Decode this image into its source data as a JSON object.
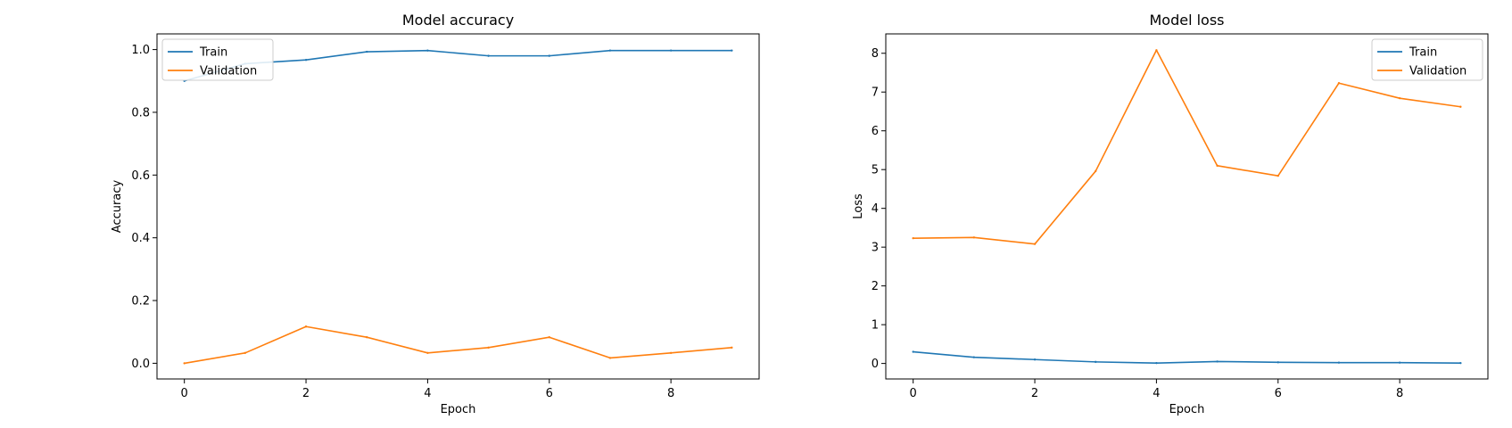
{
  "colors": {
    "train": "#1f77b4",
    "validation": "#ff7f0e",
    "axis": "#000000",
    "background": "#ffffff"
  },
  "chart_data": [
    {
      "type": "line",
      "title": "Model accuracy",
      "xlabel": "Epoch",
      "ylabel": "Accuracy",
      "xlim": [
        -0.45,
        9.45
      ],
      "ylim": [
        -0.05,
        1.05
      ],
      "xticks": [
        0,
        2,
        4,
        6,
        8
      ],
      "xtick_labels": [
        "0",
        "2",
        "4",
        "6",
        "8"
      ],
      "yticks": [
        0.0,
        0.2,
        0.4,
        0.6,
        0.8,
        1.0
      ],
      "ytick_labels": [
        "0.0",
        "0.2",
        "0.4",
        "0.6",
        "0.8",
        "1.0"
      ],
      "legend": "upper left",
      "x": [
        0,
        1,
        2,
        3,
        4,
        5,
        6,
        7,
        8,
        9
      ],
      "series": [
        {
          "name": "Train",
          "color": "#1f77b4",
          "values": [
            0.9,
            0.955,
            0.967,
            0.993,
            0.997,
            0.98,
            0.98,
            0.997,
            0.997,
            0.997
          ]
        },
        {
          "name": "Validation",
          "color": "#ff7f0e",
          "values": [
            0.0,
            0.033,
            0.117,
            0.083,
            0.033,
            0.05,
            0.083,
            0.017,
            0.033,
            0.05
          ]
        }
      ]
    },
    {
      "type": "line",
      "title": "Model loss",
      "xlabel": "Epoch",
      "ylabel": "Loss",
      "xlim": [
        -0.45,
        9.45
      ],
      "ylim": [
        -0.4,
        8.5
      ],
      "xticks": [
        0,
        2,
        4,
        6,
        8
      ],
      "xtick_labels": [
        "0",
        "2",
        "4",
        "6",
        "8"
      ],
      "yticks": [
        0,
        1,
        2,
        3,
        4,
        5,
        6,
        7,
        8
      ],
      "ytick_labels": [
        "0",
        "1",
        "2",
        "3",
        "4",
        "5",
        "6",
        "7",
        "8"
      ],
      "legend": "upper right",
      "x": [
        0,
        1,
        2,
        3,
        4,
        5,
        6,
        7,
        8,
        9
      ],
      "series": [
        {
          "name": "Train",
          "color": "#1f77b4",
          "values": [
            0.3,
            0.16,
            0.1,
            0.04,
            0.01,
            0.05,
            0.03,
            0.02,
            0.02,
            0.01
          ]
        },
        {
          "name": "Validation",
          "color": "#ff7f0e",
          "values": [
            3.23,
            3.25,
            3.08,
            4.96,
            8.08,
            5.1,
            4.84,
            7.23,
            6.84,
            6.62
          ]
        }
      ]
    }
  ]
}
